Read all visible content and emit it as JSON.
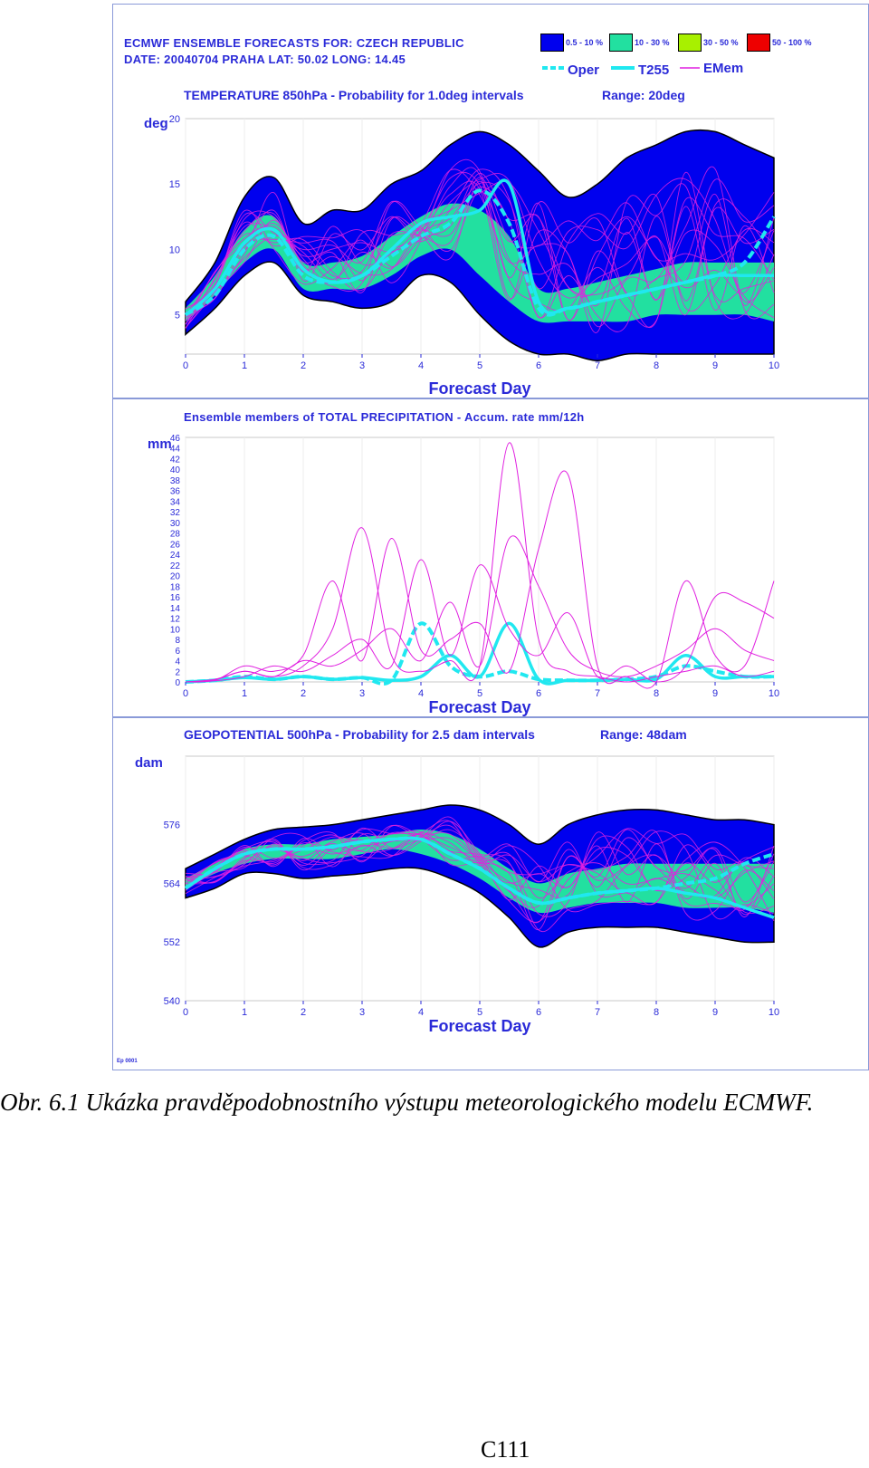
{
  "header": {
    "line1": "ECMWF ENSEMBLE FORECASTS FOR:  CZECH REPUBLIC",
    "line2": "DATE: 20040704  PRAHA  LAT: 50.02  LONG: 14.45",
    "footnote": "Ep 0001"
  },
  "legend": {
    "boxes": [
      {
        "label": "0.5 - 10 %",
        "color": "#0000ee"
      },
      {
        "label": "10 - 30 %",
        "color": "#22e0a0"
      },
      {
        "label": "30 - 50 %",
        "color": "#a8f000"
      },
      {
        "label": "50 - 100 %",
        "color": "#ee0000"
      }
    ],
    "lines": [
      {
        "label": "Oper",
        "color": "#20e8f0",
        "style": "dashed"
      },
      {
        "label": "T255",
        "color": "#20e8f0",
        "style": "solid"
      },
      {
        "label": "EMem",
        "color": "#e020e0",
        "style": "thin"
      }
    ]
  },
  "colors": {
    "text": "#2a2ad8",
    "plume_outer": "#0000ee",
    "plume_mid": "#22e0a0",
    "plume_core": "#a8f000",
    "plume_max": "#ee0000",
    "member": "#e020e0",
    "control": "#20e8f0",
    "caption": "#000000"
  },
  "chart_data": [
    {
      "type": "area",
      "title": "TEMPERATURE 850hPa - Probability for 1.0deg intervals",
      "range_label": "Range: 20deg",
      "ylabel": "deg",
      "xlabel": "Forecast Day",
      "xlim": [
        0,
        10
      ],
      "ylim": [
        2,
        20
      ],
      "x_ticks": [
        "0",
        "1",
        "2",
        "3",
        "4",
        "5",
        "6",
        "7",
        "8",
        "9",
        "10"
      ],
      "y_ticks": [
        "5",
        "10",
        "15",
        "20"
      ],
      "x": [
        0,
        0.5,
        1,
        1.5,
        2,
        2.5,
        3,
        3.5,
        4,
        4.5,
        5,
        5.5,
        6,
        6.5,
        7,
        7.5,
        8,
        8.5,
        9,
        9.5,
        10
      ],
      "band_outer": {
        "low": [
          3.5,
          5.5,
          8,
          9,
          6.5,
          6,
          5.5,
          6,
          8,
          7.5,
          5,
          3,
          2,
          2,
          1.5,
          2,
          2,
          2,
          2,
          2,
          2
        ],
        "high": [
          6,
          9,
          14,
          15.5,
          12,
          13,
          13,
          15,
          16,
          18,
          19,
          18,
          16,
          14,
          15,
          17,
          18,
          19,
          19,
          18,
          17
        ]
      },
      "band_mid": {
        "low": [
          4.5,
          6.5,
          9,
          10,
          7,
          7,
          7,
          8,
          9.5,
          10,
          8,
          6,
          4.5,
          4.5,
          4.5,
          4.5,
          5,
          5,
          5,
          5,
          4.5
        ],
        "high": [
          5.5,
          8,
          11.5,
          12.5,
          9,
          9,
          9.5,
          11,
          12.5,
          13.5,
          13,
          11,
          7,
          7,
          7.5,
          8,
          8.5,
          9,
          9,
          9,
          9
        ]
      },
      "series": [
        {
          "name": "Oper",
          "values": [
            5,
            6.5,
            10,
            11,
            8,
            7.5,
            8,
            9.5,
            11,
            12,
            14.5,
            12,
            5.5,
            5.5,
            6,
            6.5,
            7,
            7.5,
            8,
            9,
            12.5
          ]
        },
        {
          "name": "T255",
          "values": [
            5,
            7,
            10.5,
            11.5,
            8.5,
            7.5,
            8,
            10,
            12,
            12.5,
            13,
            15,
            6,
            5.5,
            6,
            6.5,
            7,
            7.5,
            8,
            8,
            8
          ]
        }
      ]
    },
    {
      "type": "line",
      "title": "Ensemble members of TOTAL PRECIPITATION - Accum. rate mm/12h",
      "ylabel": "mm",
      "xlabel": "Forecast Day",
      "xlim": [
        0,
        10
      ],
      "ylim": [
        0,
        46
      ],
      "x_ticks": [
        "0",
        "1",
        "2",
        "3",
        "4",
        "5",
        "6",
        "7",
        "8",
        "9",
        "10"
      ],
      "y_ticks": [
        "0",
        "2",
        "4",
        "6",
        "8",
        "10",
        "12",
        "14",
        "16",
        "18",
        "20",
        "22",
        "24",
        "26",
        "28",
        "30",
        "32",
        "34",
        "36",
        "38",
        "40",
        "42",
        "44",
        "46"
      ],
      "x": [
        0,
        0.5,
        1,
        1.5,
        2,
        2.5,
        3,
        3.5,
        4,
        4.5,
        5,
        5.5,
        6,
        6.5,
        7,
        7.5,
        8,
        8.5,
        9,
        9.5,
        10
      ],
      "series": [
        {
          "name": "Oper",
          "values": [
            0,
            0.3,
            1,
            0.5,
            1,
            0.5,
            0.8,
            0.3,
            11,
            3,
            1,
            2,
            0.5,
            0.3,
            0.3,
            0.5,
            1,
            3,
            2,
            1,
            1
          ]
        },
        {
          "name": "T255",
          "values": [
            0,
            0.3,
            0.8,
            0.5,
            1,
            0.5,
            0.8,
            0.3,
            1,
            5,
            1,
            11,
            0.5,
            0.3,
            0.3,
            0.5,
            0.5,
            5,
            1,
            1,
            1
          ]
        },
        {
          "values": [
            0,
            0.5,
            2,
            1,
            3,
            10,
            29,
            5,
            2,
            4,
            3,
            45,
            8,
            2,
            1,
            0,
            1,
            2,
            3,
            1,
            2
          ]
        },
        {
          "values": [
            0,
            0.3,
            3,
            2,
            5,
            19,
            4,
            27,
            6,
            8,
            11,
            2,
            25,
            39,
            3,
            1,
            0,
            19,
            5,
            3,
            19
          ]
        },
        {
          "values": [
            0,
            0.2,
            1,
            3,
            2,
            5,
            8,
            3,
            23,
            5,
            22,
            10,
            5,
            13,
            1,
            3,
            0,
            3,
            16,
            15,
            12
          ]
        },
        {
          "values": [
            0,
            0.4,
            2,
            1,
            4,
            3,
            6,
            10,
            4,
            15,
            3,
            27,
            18,
            6,
            2,
            1,
            3,
            6,
            10,
            6,
            4
          ]
        }
      ]
    },
    {
      "type": "area",
      "title": "GEOPOTENTIAL 500hPa - Probability for 2.5 dam intervals",
      "range_label": "Range: 48dam",
      "ylabel": "dam",
      "xlabel": "Forecast Day",
      "xlim": [
        0,
        10
      ],
      "ylim": [
        540,
        590
      ],
      "x_ticks": [
        "0",
        "1",
        "2",
        "3",
        "4",
        "5",
        "6",
        "7",
        "8",
        "9",
        "10"
      ],
      "y_ticks": [
        "540",
        "552",
        "564",
        "576"
      ],
      "x": [
        0,
        0.5,
        1,
        1.5,
        2,
        2.5,
        3,
        3.5,
        4,
        4.5,
        5,
        5.5,
        6,
        6.5,
        7,
        7.5,
        8,
        8.5,
        9,
        9.5,
        10
      ],
      "band_outer": {
        "low": [
          561,
          563,
          566,
          566,
          565,
          565.5,
          566,
          567,
          567,
          565,
          562,
          557,
          551,
          554,
          555,
          555,
          555,
          554,
          553,
          552,
          552
        ],
        "high": [
          567,
          570,
          573,
          575,
          575.5,
          576,
          577,
          578,
          579,
          580,
          579,
          576,
          572,
          576,
          578,
          579,
          579,
          578,
          577,
          577,
          576
        ]
      },
      "band_mid": {
        "low": [
          563,
          566,
          568,
          569,
          569,
          569,
          570,
          571,
          570,
          568,
          565,
          561,
          558,
          559,
          560,
          560,
          560,
          559,
          559,
          559,
          558
        ],
        "high": [
          565,
          568,
          571,
          572,
          572,
          573,
          573.5,
          574,
          575,
          574,
          571,
          567,
          564,
          566,
          567,
          568,
          568,
          568,
          568,
          568,
          568
        ]
      },
      "series": [
        {
          "name": "Oper",
          "values": [
            563,
            567,
            570,
            571,
            571,
            571.5,
            572.5,
            573,
            573,
            570,
            567,
            563,
            560,
            561,
            562,
            562.5,
            563,
            564,
            565,
            568,
            570
          ]
        },
        {
          "name": "T255",
          "values": [
            563,
            567,
            570,
            571,
            571,
            571.5,
            572.5,
            573,
            573,
            570,
            567,
            563,
            560,
            561,
            562,
            562.5,
            563,
            562,
            561,
            559,
            557
          ]
        }
      ]
    }
  ],
  "caption": "Obr. 6.1 Ukázka pravděpodobnostního výstupu meteorologického modelu ECMWF.",
  "page_number": "C111"
}
